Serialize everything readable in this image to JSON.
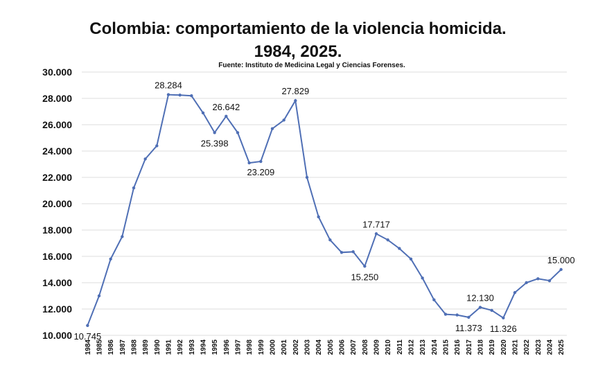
{
  "chart_data": {
    "type": "line",
    "title": "Colombia: comportamiento de la violencia homicida.",
    "subtitle": "1984, 2025.",
    "source": "Fuente: Instituto de Medicina Legal y Ciencias Forenses.",
    "xlabel": "",
    "ylabel": "",
    "ylim": [
      10000,
      30000
    ],
    "y_ticks": [
      "10.000",
      "12.000",
      "14.000",
      "16.000",
      "18.000",
      "20.000",
      "22.000",
      "24.000",
      "26.000",
      "28.000",
      "30.000"
    ],
    "grid": true,
    "legend": "none",
    "line_color": "#4f6fb5",
    "x": [
      "1984",
      "1985",
      "1986",
      "1987",
      "1988",
      "1989",
      "1990",
      "1991",
      "1992",
      "1993",
      "1994",
      "1995",
      "1996",
      "1997",
      "1998",
      "1999",
      "2000",
      "2001",
      "2002",
      "2003",
      "2004",
      "2005",
      "2006",
      "2007",
      "2008",
      "2009",
      "2010",
      "2011",
      "2012",
      "2013",
      "2014",
      "2015",
      "2016",
      "2017",
      "2018",
      "2019",
      "2020",
      "2021",
      "2022",
      "2023",
      "2024",
      "2025"
    ],
    "series": [
      {
        "values": [
          10745,
          13000,
          15800,
          17500,
          21200,
          23400,
          24400,
          28284,
          28250,
          28200,
          26900,
          25398,
          26642,
          25400,
          23100,
          23209,
          25700,
          26350,
          27829,
          22000,
          19000,
          17250,
          16300,
          16350,
          15250,
          17717,
          17250,
          16600,
          15800,
          14350,
          12700,
          11600,
          11550,
          11373,
          12130,
          11900,
          11326,
          13250,
          14000,
          14300,
          14150,
          15000
        ]
      }
    ],
    "data_labels": [
      {
        "index": 0,
        "text": "10.745",
        "pos": "below"
      },
      {
        "index": 7,
        "text": "28.284",
        "pos": "above"
      },
      {
        "index": 11,
        "text": "25.398",
        "pos": "below"
      },
      {
        "index": 12,
        "text": "26.642",
        "pos": "above"
      },
      {
        "index": 15,
        "text": "23.209",
        "pos": "below"
      },
      {
        "index": 18,
        "text": "27.829",
        "pos": "above"
      },
      {
        "index": 24,
        "text": "15.250",
        "pos": "below"
      },
      {
        "index": 25,
        "text": "17.717",
        "pos": "above"
      },
      {
        "index": 33,
        "text": "11.373",
        "pos": "below"
      },
      {
        "index": 34,
        "text": "12.130",
        "pos": "above"
      },
      {
        "index": 36,
        "text": "11.326",
        "pos": "below"
      },
      {
        "index": 41,
        "text": "15.000",
        "pos": "above"
      }
    ]
  }
}
